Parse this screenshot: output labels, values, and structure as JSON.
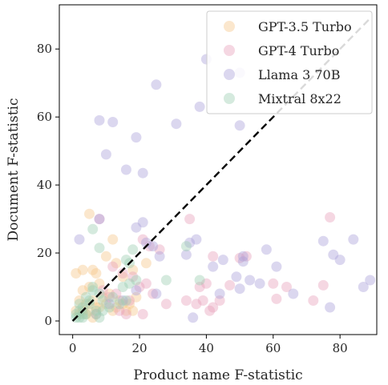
{
  "chart_data": {
    "type": "scatter",
    "xlabel": "Product name F-statistic",
    "ylabel": "Document F-statistic",
    "xlim": [
      -4,
      91
    ],
    "ylim": [
      -4,
      93
    ],
    "xticks": [
      0,
      20,
      40,
      60,
      80
    ],
    "yticks": [
      0,
      20,
      40,
      60,
      80
    ],
    "grid": false,
    "legend_position": "top-right",
    "reference_line": {
      "style": "dashed",
      "color": "#000000",
      "from": [
        0,
        0
      ],
      "to": [
        89,
        89
      ]
    },
    "series": [
      {
        "name": "GPT-3.5 Turbo",
        "color": "#f5c689",
        "points": [
          [
            5,
            31.5
          ],
          [
            12,
            24
          ],
          [
            1,
            14
          ],
          [
            3,
            15
          ],
          [
            6,
            15
          ],
          [
            7,
            14
          ],
          [
            10,
            19
          ],
          [
            13,
            17
          ],
          [
            15,
            13
          ],
          [
            18,
            15
          ],
          [
            22,
            17
          ],
          [
            8,
            11
          ],
          [
            3,
            9
          ],
          [
            5,
            10
          ],
          [
            2,
            6
          ],
          [
            4,
            5
          ],
          [
            6,
            6
          ],
          [
            7,
            4
          ],
          [
            9,
            7
          ],
          [
            11,
            8
          ],
          [
            14,
            6
          ],
          [
            17,
            5
          ],
          [
            18,
            3
          ],
          [
            2,
            2
          ],
          [
            3,
            3
          ],
          [
            5,
            3
          ],
          [
            8,
            4
          ],
          [
            10,
            5
          ],
          [
            13,
            4
          ],
          [
            19,
            7
          ],
          [
            1,
            3
          ],
          [
            4,
            2
          ],
          [
            6,
            1
          ],
          [
            12,
            3
          ],
          [
            15,
            5
          ],
          [
            16,
            3
          ]
        ]
      },
      {
        "name": "GPT-4 Turbo",
        "color": "#e8a0b9",
        "points": [
          [
            8,
            30
          ],
          [
            35,
            30
          ],
          [
            77,
            30.5
          ],
          [
            21,
            24
          ],
          [
            23,
            22
          ],
          [
            26,
            21
          ],
          [
            12,
            16
          ],
          [
            15,
            14
          ],
          [
            18,
            13
          ],
          [
            20,
            10
          ],
          [
            22,
            11
          ],
          [
            42,
            19
          ],
          [
            50,
            18.5
          ],
          [
            52,
            19
          ],
          [
            60,
            11
          ],
          [
            64,
            10
          ],
          [
            61,
            6.5
          ],
          [
            38,
            10
          ],
          [
            40,
            11
          ],
          [
            47,
            10.5
          ],
          [
            44,
            6
          ],
          [
            42,
            4
          ],
          [
            41,
            3
          ],
          [
            34,
            6
          ],
          [
            37,
            5
          ],
          [
            39,
            6
          ],
          [
            75,
            10.5
          ],
          [
            72,
            6
          ],
          [
            28,
            5
          ],
          [
            14,
            3
          ],
          [
            16,
            2
          ],
          [
            21,
            2
          ],
          [
            11,
            7
          ],
          [
            13,
            8
          ],
          [
            17,
            6
          ],
          [
            24,
            8
          ],
          [
            9,
            9
          ],
          [
            7,
            2
          ]
        ]
      },
      {
        "name": "Llama 3 70B",
        "color": "#a99fd8",
        "points": [
          [
            25,
            69.5
          ],
          [
            40,
            77
          ],
          [
            38,
            63
          ],
          [
            50,
            73
          ],
          [
            50,
            57.5
          ],
          [
            31,
            58
          ],
          [
            8,
            59
          ],
          [
            12,
            58.5
          ],
          [
            19,
            54
          ],
          [
            10,
            49
          ],
          [
            16,
            44.5
          ],
          [
            21,
            43.5
          ],
          [
            2,
            24
          ],
          [
            8,
            30
          ],
          [
            19,
            27.5
          ],
          [
            21,
            29
          ],
          [
            22,
            23
          ],
          [
            24,
            22
          ],
          [
            26,
            19
          ],
          [
            34,
            19.5
          ],
          [
            35,
            23
          ],
          [
            37,
            24
          ],
          [
            42,
            16
          ],
          [
            45,
            18
          ],
          [
            51,
            19
          ],
          [
            51,
            17.5
          ],
          [
            58,
            21
          ],
          [
            61,
            16
          ],
          [
            49,
            13
          ],
          [
            53,
            12
          ],
          [
            56,
            11
          ],
          [
            75,
            23.5
          ],
          [
            78,
            19.5
          ],
          [
            80,
            18
          ],
          [
            84,
            24
          ],
          [
            87,
            10
          ],
          [
            89,
            12
          ],
          [
            66,
            8
          ],
          [
            50,
            9.5
          ],
          [
            44,
            8
          ],
          [
            36,
            1
          ],
          [
            25,
            8
          ],
          [
            19,
            9
          ],
          [
            15,
            6
          ],
          [
            11,
            5
          ],
          [
            77,
            4
          ]
        ]
      },
      {
        "name": "Mixtral 8x22",
        "color": "#9cccb1",
        "points": [
          [
            6,
            27
          ],
          [
            8,
            21.5
          ],
          [
            16,
            18
          ],
          [
            17,
            17
          ],
          [
            18,
            21
          ],
          [
            28,
            12
          ],
          [
            34,
            22
          ],
          [
            38,
            12
          ],
          [
            6,
            10
          ],
          [
            8,
            8
          ],
          [
            5,
            6
          ],
          [
            3,
            4
          ],
          [
            2,
            3
          ],
          [
            4,
            2
          ],
          [
            1,
            1
          ],
          [
            3,
            1
          ],
          [
            7,
            2
          ],
          [
            9,
            3
          ],
          [
            11,
            4
          ],
          [
            2,
            5
          ],
          [
            4,
            7
          ],
          [
            6,
            9
          ],
          [
            15,
            10
          ],
          [
            17,
            11
          ],
          [
            19,
            12
          ],
          [
            1,
            2
          ],
          [
            5,
            5
          ],
          [
            7,
            3
          ],
          [
            9,
            6
          ],
          [
            12,
            7
          ],
          [
            14,
            5
          ],
          [
            16,
            6
          ],
          [
            2,
            1
          ],
          [
            3,
            2
          ],
          [
            8,
            1
          ]
        ]
      }
    ]
  }
}
